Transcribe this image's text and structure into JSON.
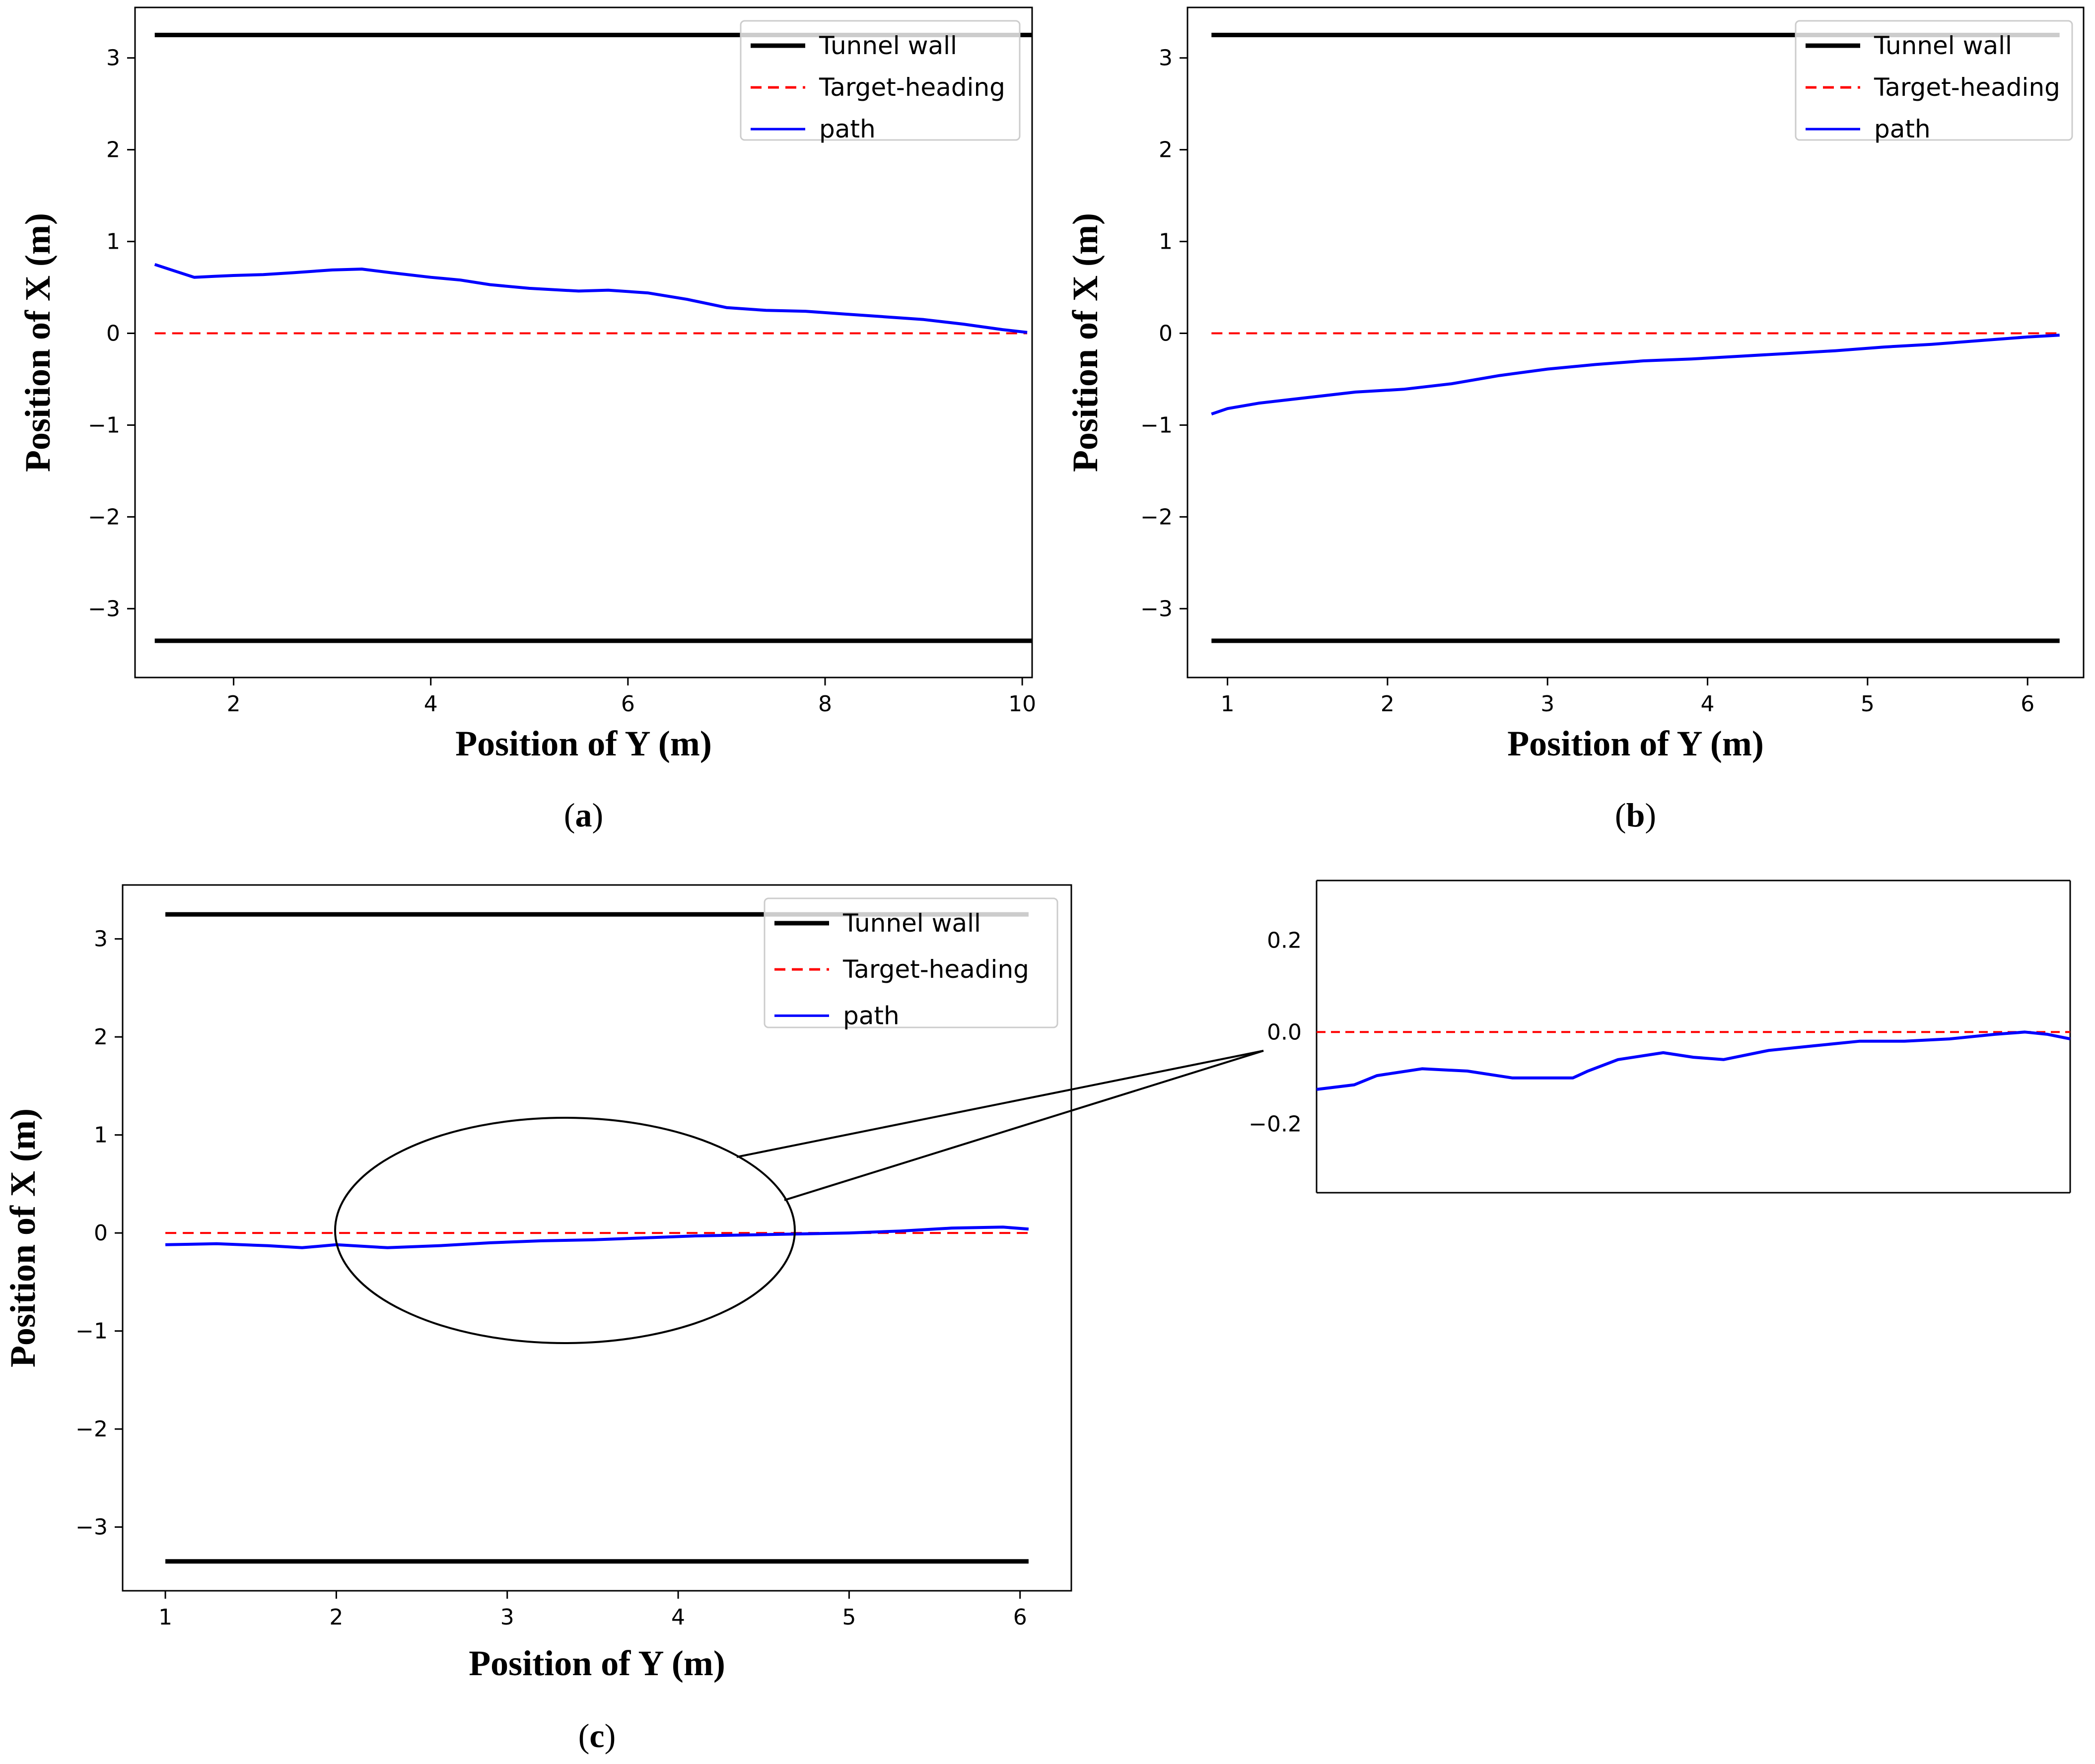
{
  "chart_data": [
    {
      "type": "line",
      "panel": "a",
      "caption": {
        "open": "(",
        "letter": "a",
        "close": ")"
      },
      "xlabel": "Position of Y (m)",
      "ylabel": "Position of X (m)",
      "xlim": [
        1.0,
        10.1
      ],
      "ylim": [
        -3.75,
        3.55
      ],
      "xticks": [
        2,
        4,
        6,
        8,
        10
      ],
      "xtick_labels": [
        "2",
        "4",
        "6",
        "8",
        "10"
      ],
      "yticks": [
        3,
        2,
        1,
        0,
        -1,
        -2,
        -3
      ],
      "ytick_labels": [
        "3",
        "2",
        "1",
        "0",
        "−1",
        "−2",
        "−3"
      ],
      "legend": {
        "position": "top-right",
        "entries": [
          "Tunnel wall",
          "Target-heading",
          "path"
        ]
      },
      "series": [
        {
          "name": "Tunnel wall",
          "style": "solid",
          "color": "#000000",
          "x": [
            1.2,
            10.1
          ],
          "y": [
            3.25,
            3.25
          ]
        },
        {
          "name": "Tunnel wall",
          "style": "solid",
          "color": "#000000",
          "x": [
            1.2,
            10.1
          ],
          "y": [
            -3.35,
            -3.35
          ]
        },
        {
          "name": "Target-heading",
          "style": "dashed",
          "color": "#ff0000",
          "x": [
            1.2,
            10.05
          ],
          "y": [
            0,
            0
          ]
        },
        {
          "name": "path",
          "style": "solid",
          "color": "#0000ff",
          "x": [
            1.2,
            1.4,
            1.6,
            1.8,
            2.0,
            2.3,
            2.6,
            3.0,
            3.3,
            3.6,
            4.0,
            4.3,
            4.6,
            5.0,
            5.5,
            5.8,
            6.2,
            6.6,
            7.0,
            7.4,
            7.8,
            8.2,
            8.6,
            9.0,
            9.4,
            9.8,
            10.05
          ],
          "y": [
            0.75,
            0.68,
            0.61,
            0.62,
            0.63,
            0.64,
            0.66,
            0.69,
            0.7,
            0.66,
            0.61,
            0.58,
            0.53,
            0.49,
            0.46,
            0.47,
            0.44,
            0.37,
            0.28,
            0.25,
            0.24,
            0.21,
            0.18,
            0.15,
            0.1,
            0.04,
            0.01
          ]
        }
      ]
    },
    {
      "type": "line",
      "panel": "b",
      "caption": {
        "open": "(",
        "letter": "b",
        "close": ")"
      },
      "xlabel": "Position of Y (m)",
      "ylabel": "Position of X (m)",
      "xlim": [
        0.75,
        6.35
      ],
      "ylim": [
        -3.75,
        3.55
      ],
      "xticks": [
        1,
        2,
        3,
        4,
        5,
        6
      ],
      "xtick_labels": [
        "1",
        "2",
        "3",
        "4",
        "5",
        "6"
      ],
      "yticks": [
        3,
        2,
        1,
        0,
        -1,
        -2,
        -3
      ],
      "ytick_labels": [
        "3",
        "2",
        "1",
        "0",
        "−1",
        "−2",
        "−3"
      ],
      "legend": {
        "position": "top-right",
        "entries": [
          "Tunnel wall",
          "Target-heading",
          "path"
        ]
      },
      "series": [
        {
          "name": "Tunnel wall",
          "style": "solid",
          "color": "#000000",
          "x": [
            0.9,
            6.2
          ],
          "y": [
            3.25,
            3.25
          ]
        },
        {
          "name": "Tunnel wall",
          "style": "solid",
          "color": "#000000",
          "x": [
            0.9,
            6.2
          ],
          "y": [
            -3.35,
            -3.35
          ]
        },
        {
          "name": "Target-heading",
          "style": "dashed",
          "color": "#ff0000",
          "x": [
            0.9,
            6.2
          ],
          "y": [
            0,
            0
          ]
        },
        {
          "name": "path",
          "style": "solid",
          "color": "#0000ff",
          "x": [
            0.9,
            1.0,
            1.2,
            1.5,
            1.8,
            2.1,
            2.4,
            2.7,
            3.0,
            3.3,
            3.6,
            3.9,
            4.2,
            4.5,
            4.8,
            5.1,
            5.4,
            5.7,
            6.0,
            6.2
          ],
          "y": [
            -0.88,
            -0.82,
            -0.76,
            -0.7,
            -0.64,
            -0.61,
            -0.55,
            -0.46,
            -0.39,
            -0.34,
            -0.3,
            -0.28,
            -0.25,
            -0.22,
            -0.19,
            -0.15,
            -0.12,
            -0.08,
            -0.04,
            -0.02
          ]
        }
      ]
    },
    {
      "type": "line",
      "panel": "c",
      "caption": {
        "open": "(",
        "letter": "c",
        "close": ")"
      },
      "xlabel": "Position of Y (m)",
      "ylabel": "Position of X (m)",
      "xlim": [
        0.75,
        6.3
      ],
      "ylim": [
        -3.65,
        3.55
      ],
      "xticks": [
        1,
        2,
        3,
        4,
        5,
        6
      ],
      "xtick_labels": [
        "1",
        "2",
        "3",
        "4",
        "5",
        "6"
      ],
      "yticks": [
        3,
        2,
        1,
        0,
        -1,
        -2,
        -3
      ],
      "ytick_labels": [
        "3",
        "2",
        "1",
        "0",
        "−1",
        "−2",
        "−3"
      ],
      "legend": {
        "position": "top-right",
        "entries": [
          "Tunnel wall",
          "Target-heading",
          "path"
        ]
      },
      "series": [
        {
          "name": "Tunnel wall",
          "style": "solid",
          "color": "#000000",
          "x": [
            1.0,
            6.05
          ],
          "y": [
            3.25,
            3.25
          ]
        },
        {
          "name": "Tunnel wall",
          "style": "solid",
          "color": "#000000",
          "x": [
            1.0,
            6.05
          ],
          "y": [
            -3.35,
            -3.35
          ]
        },
        {
          "name": "Target-heading",
          "style": "dashed",
          "color": "#ff0000",
          "x": [
            1.0,
            6.05
          ],
          "y": [
            0,
            0
          ]
        },
        {
          "name": "path",
          "style": "solid",
          "color": "#0000ff",
          "x": [
            1.0,
            1.3,
            1.6,
            1.8,
            2.0,
            2.3,
            2.6,
            2.9,
            3.2,
            3.5,
            3.8,
            4.1,
            4.4,
            4.7,
            5.0,
            5.3,
            5.6,
            5.9,
            6.05
          ],
          "y": [
            -0.12,
            -0.11,
            -0.13,
            -0.15,
            -0.12,
            -0.15,
            -0.13,
            -0.1,
            -0.08,
            -0.07,
            -0.05,
            -0.03,
            -0.02,
            -0.01,
            0.0,
            0.02,
            0.05,
            0.06,
            0.04
          ]
        }
      ]
    },
    {
      "type": "line",
      "panel": "c-inset",
      "xlim": [
        0,
        1
      ],
      "ylim": [
        -0.35,
        0.33
      ],
      "yticks": [
        0.2,
        0.0,
        -0.2
      ],
      "ytick_labels": [
        "0.2",
        "0.0",
        "−0.2"
      ],
      "series": [
        {
          "name": "Target-heading",
          "style": "dashed",
          "color": "#ff0000",
          "x": [
            0,
            1
          ],
          "y": [
            0,
            0
          ]
        },
        {
          "name": "path",
          "style": "solid",
          "color": "#0000ff",
          "x": [
            0.0,
            0.05,
            0.08,
            0.14,
            0.2,
            0.26,
            0.31,
            0.34,
            0.36,
            0.4,
            0.46,
            0.5,
            0.54,
            0.6,
            0.66,
            0.72,
            0.78,
            0.84,
            0.9,
            0.94,
            0.97,
            1.0
          ],
          "y": [
            -0.125,
            -0.115,
            -0.095,
            -0.08,
            -0.085,
            -0.1,
            -0.1,
            -0.1,
            -0.085,
            -0.06,
            -0.045,
            -0.055,
            -0.06,
            -0.04,
            -0.03,
            -0.02,
            -0.02,
            -0.015,
            -0.005,
            0.0,
            -0.005,
            -0.015
          ]
        }
      ]
    }
  ]
}
